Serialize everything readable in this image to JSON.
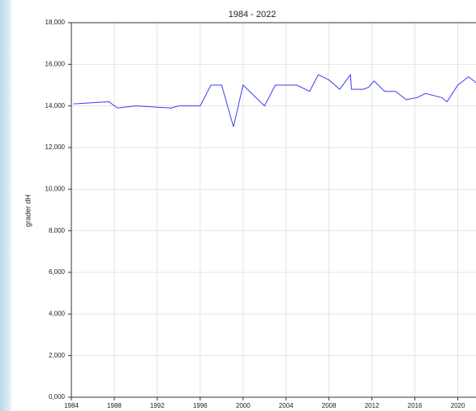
{
  "chart_data": {
    "type": "line",
    "title": "1984 - 2022",
    "y_label": "grader dH",
    "x": [
      1984.2,
      1987.5,
      1988.3,
      1990,
      1993.3,
      1994,
      1996,
      1997,
      1998,
      1999.1,
      2000,
      2002,
      2003,
      2005,
      2006.2,
      2007,
      2008,
      2009,
      2010,
      2010.1,
      2011.2,
      2011.7,
      2012.2,
      2013.2,
      2014.2,
      2015.2,
      2016.2,
      2017,
      2018.5,
      2019,
      2020,
      2021,
      2022
    ],
    "series": [
      {
        "name": "grader dH",
        "color": "#3b3bf0",
        "values": [
          14100,
          14200,
          13900,
          14000,
          13900,
          14000,
          14000,
          15000,
          15000,
          13000,
          15000,
          14000,
          15000,
          15000,
          14700,
          15500,
          15250,
          14800,
          15500,
          14800,
          14800,
          14900,
          15200,
          14700,
          14700,
          14300,
          14400,
          14600,
          14400,
          14200,
          15000,
          15400,
          15000
        ]
      }
    ],
    "xlim": [
      1984,
      2022
    ],
    "xticks": [
      1984,
      1988,
      1992,
      1996,
      2000,
      2004,
      2008,
      2012,
      2016,
      2020
    ],
    "ylim": [
      0,
      18000
    ],
    "yticks": [
      {
        "value": 0,
        "label": "0,000"
      },
      {
        "value": 2000,
        "label": "2,000"
      },
      {
        "value": 4000,
        "label": "4,000"
      },
      {
        "value": 6000,
        "label": "6,000"
      },
      {
        "value": 8000,
        "label": "8,000"
      },
      {
        "value": 10000,
        "label": "10,000"
      },
      {
        "value": 12000,
        "label": "12,000"
      },
      {
        "value": 14000,
        "label": "14,000"
      },
      {
        "value": 16000,
        "label": "16,000"
      },
      {
        "value": 18000,
        "label": "18,000"
      }
    ],
    "grid": true
  }
}
